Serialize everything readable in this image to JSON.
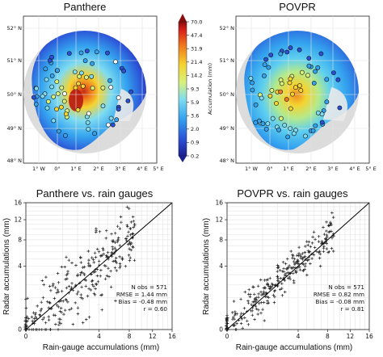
{
  "maps": [
    {
      "title": "Panthere",
      "lat_labels": [
        "52° N",
        "51° N",
        "50° N",
        "49° N",
        "48° N"
      ],
      "lon_labels": [
        "1° W",
        "0°",
        "1° E",
        "2° E",
        "3° E",
        "4° E",
        "5° E"
      ]
    },
    {
      "title": "POVPR",
      "lat_labels": [
        "52° N",
        "51° N",
        "50° N",
        "49° N",
        "48° N"
      ],
      "lon_labels": [
        "1° W",
        "0°",
        "1° E",
        "2° E",
        "3° E",
        "4° E",
        "5° E"
      ]
    }
  ],
  "colorbar": {
    "label": "Accumulation (mm)",
    "ticks": [
      "70.0",
      "47.4",
      "31.9",
      "21.4",
      "14.2",
      "9.3",
      "5.9",
      "3.6",
      "2.0",
      "0.9",
      "0.2"
    ]
  },
  "colors": {
    "point": "#222222",
    "fit_line": "#000000"
  },
  "chart_data": [
    {
      "type": "scatter",
      "title": "Panthere vs. rain gauges",
      "xlabel": "Rain-gauge accumulations (mm)",
      "ylabel": "Radar accumulations (mm)",
      "tick_labels": [
        "0",
        "4",
        "8",
        "12",
        "16"
      ],
      "scale": "square-root",
      "xlim": [
        0,
        16
      ],
      "ylim": [
        0,
        16
      ],
      "grid": true,
      "reference_line": "1:1",
      "stats": [
        "N obs = 571",
        "RMSE = 1.44 mm",
        "Bias = -0.48 mm",
        "r = 0.60"
      ],
      "n_obs": 571,
      "rmse_mm": 1.44,
      "bias_mm": -0.48,
      "r": 0.6
    },
    {
      "type": "scatter",
      "title": "POVPR vs. rain gauges",
      "xlabel": "Rain-gauge accumulations (mm)",
      "ylabel": "Radar accumulations (mm)",
      "tick_labels": [
        "0",
        "4",
        "8",
        "12",
        "16"
      ],
      "scale": "square-root",
      "xlim": [
        0,
        16
      ],
      "ylim": [
        0,
        16
      ],
      "grid": true,
      "reference_line": "1:1",
      "stats": [
        "N obs = 571",
        "RMSE = 0.82 mm",
        "Bias = -0.08 mm",
        "r = 0.81"
      ],
      "n_obs": 571,
      "rmse_mm": 0.82,
      "bias_mm": -0.08,
      "r": 0.81
    }
  ]
}
